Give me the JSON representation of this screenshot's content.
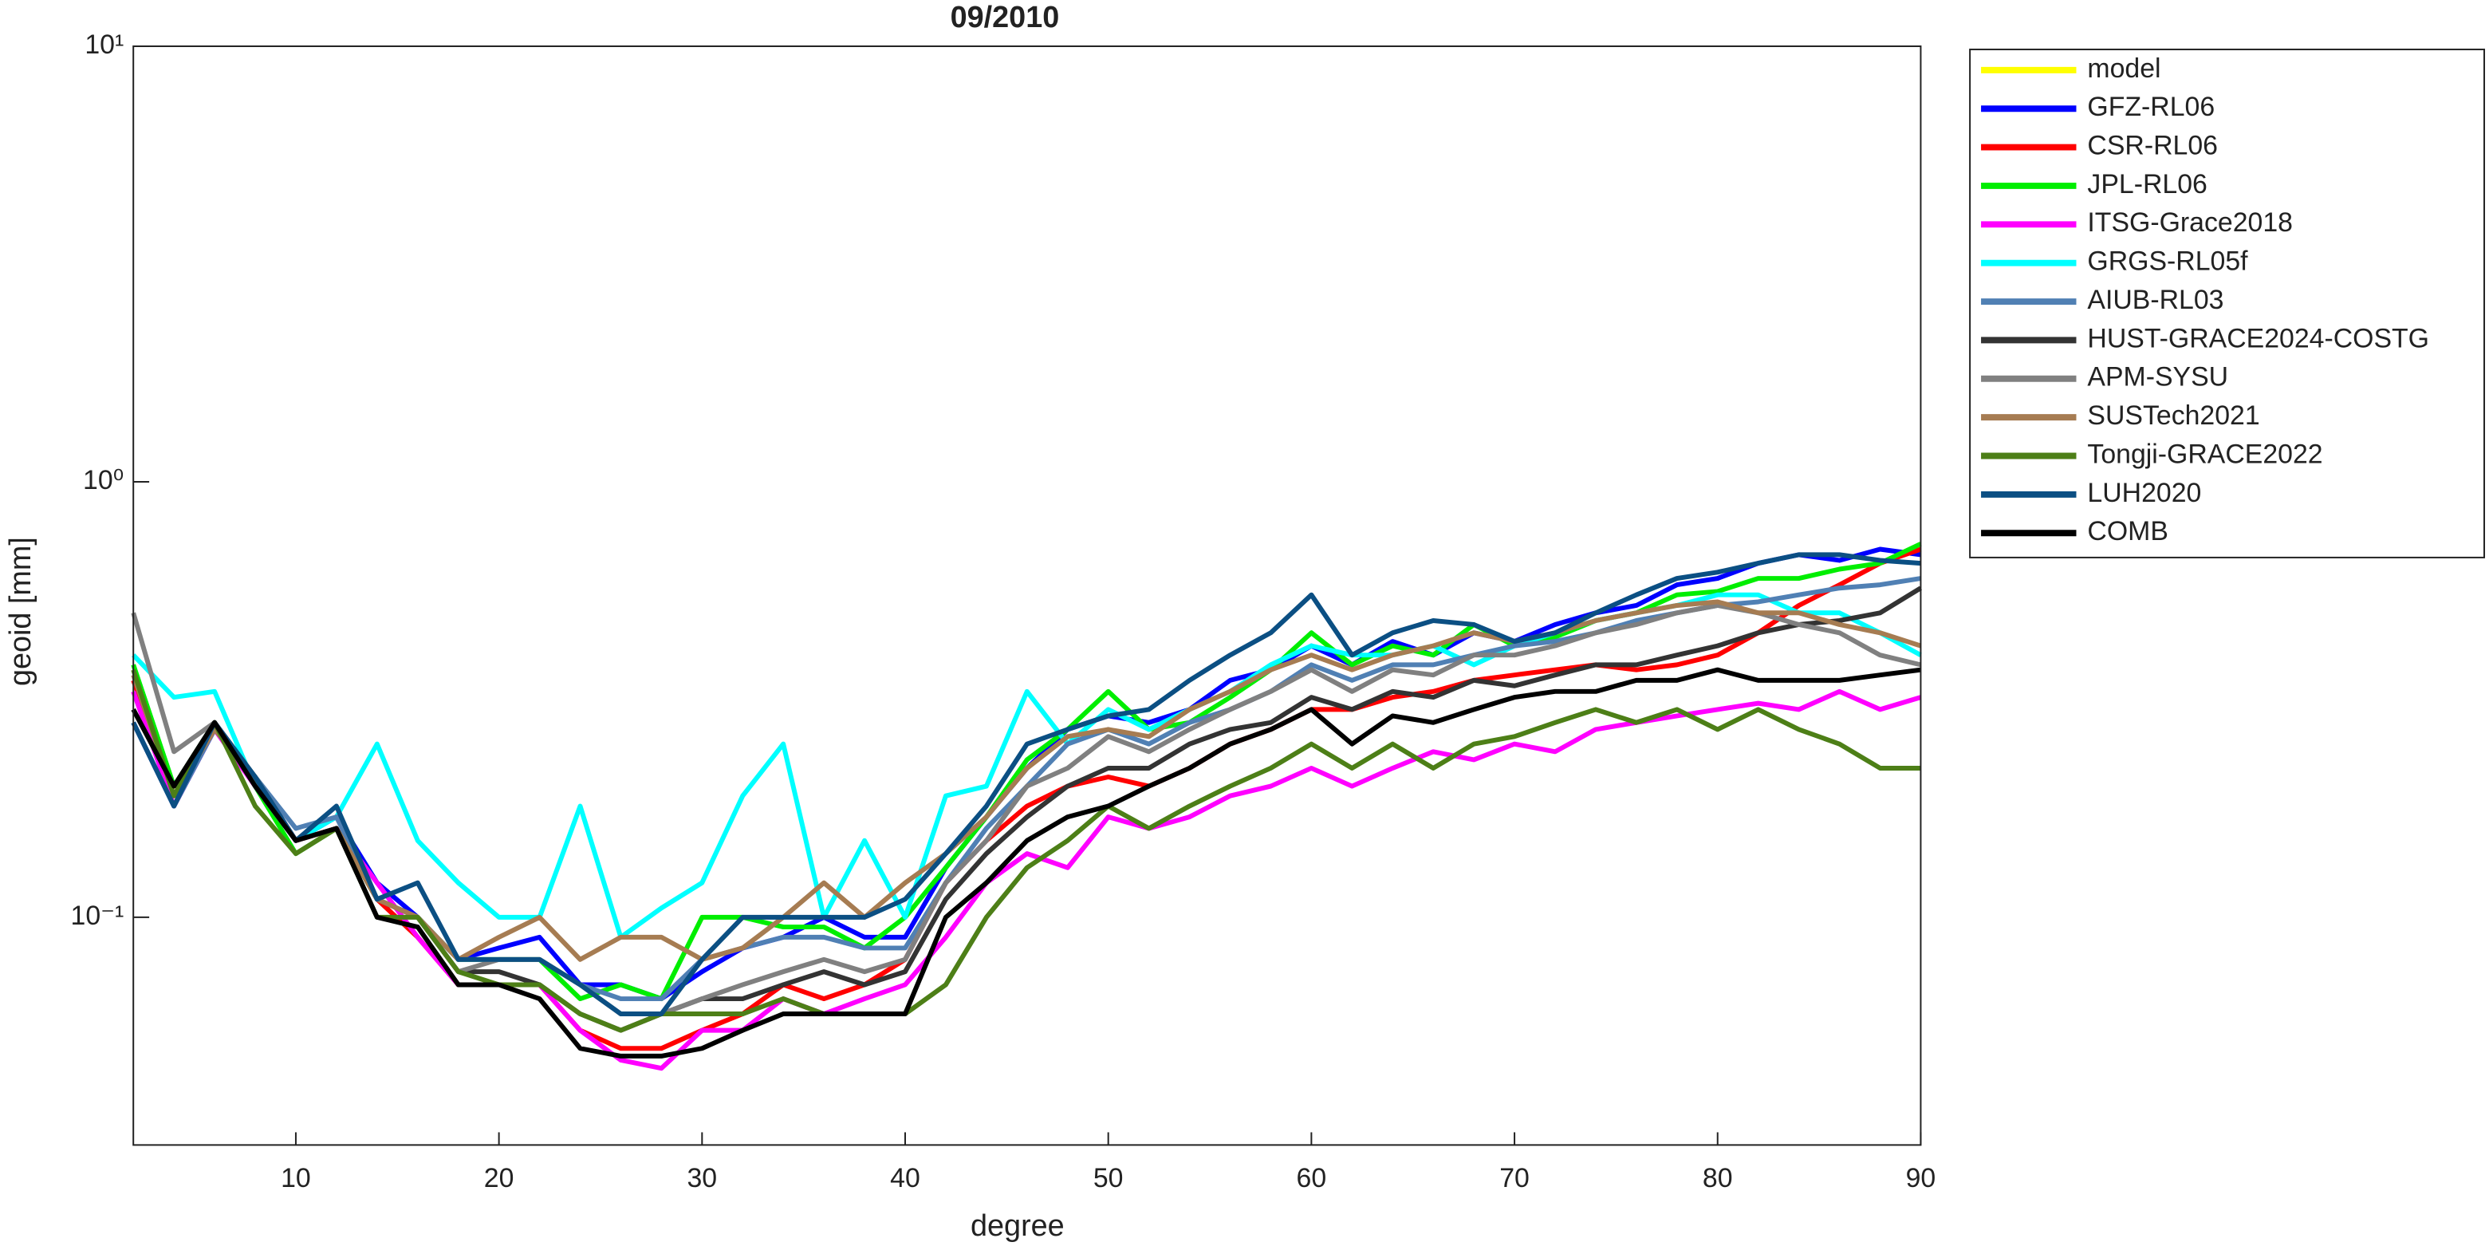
{
  "chart_data": {
    "type": "line",
    "title": "09/2010",
    "xlabel": "degree",
    "ylabel": "geoid [mm]",
    "x": [
      2,
      4,
      6,
      8,
      10,
      12,
      14,
      16,
      18,
      20,
      22,
      24,
      26,
      28,
      30,
      32,
      34,
      36,
      38,
      40,
      42,
      44,
      46,
      48,
      50,
      52,
      54,
      56,
      58,
      60,
      62,
      64,
      66,
      68,
      70,
      72,
      74,
      76,
      78,
      80,
      82,
      84,
      86,
      88,
      90
    ],
    "xlim": [
      2,
      90
    ],
    "xticks": [
      10,
      20,
      30,
      40,
      50,
      60,
      70,
      80,
      90
    ],
    "ylim": [
      0.03,
      10
    ],
    "log_y": true,
    "yticks": [
      {
        "value": 0.1,
        "label": "10⁻¹"
      },
      {
        "value": 1,
        "label": "10⁰"
      },
      {
        "value": 10,
        "label": "10¹"
      }
    ],
    "legend": "outside-right",
    "series": [
      {
        "name": "model",
        "color": "#ffff00",
        "values": [
          null,
          null,
          null,
          null,
          null,
          null,
          null,
          null,
          null,
          null,
          null,
          null,
          null,
          null,
          null,
          null,
          null,
          null,
          null,
          null,
          null,
          null,
          null,
          null,
          null,
          null,
          null,
          null,
          null,
          null,
          null,
          null,
          null,
          null,
          null,
          null,
          null,
          null,
          null,
          null,
          null,
          null,
          null,
          null,
          null
        ]
      },
      {
        "name": "GFZ-RL06",
        "color": "#0000ff",
        "values": [
          0.28,
          0.18,
          0.27,
          0.21,
          0.15,
          0.17,
          0.12,
          0.1,
          0.08,
          0.085,
          0.09,
          0.07,
          0.07,
          0.065,
          0.075,
          0.085,
          0.09,
          0.1,
          0.09,
          0.09,
          0.13,
          0.17,
          0.22,
          0.27,
          0.29,
          0.28,
          0.3,
          0.35,
          0.37,
          0.42,
          0.38,
          0.43,
          0.4,
          0.45,
          0.43,
          0.47,
          0.5,
          0.52,
          0.58,
          0.6,
          0.65,
          0.68,
          0.66,
          0.7,
          0.68
        ]
      },
      {
        "name": "CSR-RL06",
        "color": "#ff0000",
        "values": [
          0.35,
          0.19,
          0.28,
          0.2,
          0.15,
          0.16,
          0.11,
          0.09,
          0.07,
          0.07,
          0.07,
          0.055,
          0.05,
          0.05,
          0.055,
          0.06,
          0.07,
          0.065,
          0.07,
          0.08,
          0.12,
          0.15,
          0.18,
          0.2,
          0.21,
          0.2,
          0.22,
          0.25,
          0.27,
          0.3,
          0.3,
          0.32,
          0.33,
          0.35,
          0.36,
          0.37,
          0.38,
          0.37,
          0.38,
          0.4,
          0.45,
          0.52,
          0.58,
          0.65,
          0.7
        ]
      },
      {
        "name": "JPL-RL06",
        "color": "#00ee00",
        "values": [
          0.38,
          0.2,
          0.28,
          0.2,
          0.14,
          0.16,
          0.11,
          0.1,
          0.08,
          0.08,
          0.08,
          0.065,
          0.07,
          0.065,
          0.1,
          0.1,
          0.095,
          0.095,
          0.085,
          0.1,
          0.13,
          0.17,
          0.23,
          0.27,
          0.33,
          0.27,
          0.28,
          0.32,
          0.37,
          0.45,
          0.38,
          0.42,
          0.4,
          0.47,
          0.42,
          0.44,
          0.48,
          0.5,
          0.55,
          0.56,
          0.6,
          0.6,
          0.63,
          0.65,
          0.72
        ]
      },
      {
        "name": "ITSG-Grace2018",
        "color": "#ff00ff",
        "values": [
          0.33,
          0.18,
          0.27,
          0.2,
          0.15,
          0.16,
          0.12,
          0.09,
          0.07,
          0.07,
          0.07,
          0.055,
          0.047,
          0.045,
          0.055,
          0.055,
          0.065,
          0.06,
          0.065,
          0.07,
          0.09,
          0.12,
          0.14,
          0.13,
          0.17,
          0.16,
          0.17,
          0.19,
          0.2,
          0.22,
          0.2,
          0.22,
          0.24,
          0.23,
          0.25,
          0.24,
          0.27,
          0.28,
          0.29,
          0.3,
          0.31,
          0.3,
          0.33,
          0.3,
          0.32
        ]
      },
      {
        "name": "GRGS-RL05f",
        "color": "#00ffff",
        "values": [
          0.4,
          0.32,
          0.33,
          0.2,
          0.15,
          0.17,
          0.25,
          0.15,
          0.12,
          0.1,
          0.1,
          0.18,
          0.09,
          0.105,
          0.12,
          0.19,
          0.25,
          0.1,
          0.15,
          0.1,
          0.19,
          0.2,
          0.33,
          0.25,
          0.3,
          0.27,
          0.3,
          0.33,
          0.38,
          0.42,
          0.4,
          0.4,
          0.42,
          0.38,
          0.42,
          0.45,
          0.48,
          0.5,
          0.52,
          0.55,
          0.55,
          0.5,
          0.5,
          0.45,
          0.4
        ]
      },
      {
        "name": "AIUB-RL03",
        "color": "#5080b4",
        "values": [
          0.28,
          0.18,
          0.27,
          0.21,
          0.16,
          0.17,
          0.11,
          0.1,
          0.08,
          0.08,
          0.08,
          0.07,
          0.065,
          0.065,
          0.08,
          0.085,
          0.09,
          0.09,
          0.085,
          0.085,
          0.12,
          0.16,
          0.2,
          0.25,
          0.27,
          0.25,
          0.28,
          0.3,
          0.33,
          0.38,
          0.35,
          0.38,
          0.38,
          0.4,
          0.42,
          0.43,
          0.45,
          0.48,
          0.5,
          0.52,
          0.53,
          0.55,
          0.57,
          0.58,
          0.6
        ]
      },
      {
        "name": "HUST-GRACE2024-COSTG",
        "color": "#333333",
        "values": [
          0.3,
          0.2,
          0.28,
          0.21,
          0.15,
          0.16,
          0.11,
          0.1,
          0.075,
          0.075,
          0.07,
          0.06,
          0.055,
          0.06,
          0.065,
          0.065,
          0.07,
          0.075,
          0.07,
          0.075,
          0.11,
          0.14,
          0.17,
          0.2,
          0.22,
          0.22,
          0.25,
          0.27,
          0.28,
          0.32,
          0.3,
          0.33,
          0.32,
          0.35,
          0.34,
          0.36,
          0.38,
          0.38,
          0.4,
          0.42,
          0.45,
          0.47,
          0.48,
          0.5,
          0.57
        ]
      },
      {
        "name": "APM-SYSU",
        "color": "#808080",
        "values": [
          0.5,
          0.24,
          0.28,
          0.2,
          0.15,
          0.16,
          0.11,
          0.1,
          0.075,
          0.08,
          0.08,
          0.07,
          0.06,
          0.06,
          0.065,
          0.07,
          0.075,
          0.08,
          0.075,
          0.08,
          0.12,
          0.15,
          0.2,
          0.22,
          0.26,
          0.24,
          0.27,
          0.3,
          0.33,
          0.37,
          0.33,
          0.37,
          0.36,
          0.4,
          0.4,
          0.42,
          0.45,
          0.47,
          0.5,
          0.52,
          0.5,
          0.47,
          0.45,
          0.4,
          0.38
        ]
      },
      {
        "name": "SUSTech2021",
        "color": "#a67c52",
        "values": [
          0.36,
          0.19,
          0.27,
          0.21,
          0.15,
          0.16,
          0.11,
          0.1,
          0.08,
          0.09,
          0.1,
          0.08,
          0.09,
          0.09,
          0.08,
          0.085,
          0.1,
          0.12,
          0.1,
          0.12,
          0.14,
          0.17,
          0.22,
          0.26,
          0.27,
          0.26,
          0.3,
          0.33,
          0.37,
          0.4,
          0.37,
          0.4,
          0.42,
          0.45,
          0.43,
          0.45,
          0.48,
          0.5,
          0.52,
          0.53,
          0.5,
          0.5,
          0.47,
          0.45,
          0.42
        ]
      },
      {
        "name": "Tongji-GRACE2022",
        "color": "#4d7f17",
        "values": [
          0.37,
          0.19,
          0.28,
          0.18,
          0.14,
          0.16,
          0.1,
          0.1,
          0.075,
          0.07,
          0.07,
          0.06,
          0.055,
          0.06,
          0.06,
          0.06,
          0.065,
          0.06,
          0.06,
          0.06,
          0.07,
          0.1,
          0.13,
          0.15,
          0.18,
          0.16,
          0.18,
          0.2,
          0.22,
          0.25,
          0.22,
          0.25,
          0.22,
          0.25,
          0.26,
          0.28,
          0.3,
          0.28,
          0.3,
          0.27,
          0.3,
          0.27,
          0.25,
          0.22,
          0.22
        ]
      },
      {
        "name": "LUH2020",
        "color": "#0b4f83",
        "values": [
          0.28,
          0.18,
          0.28,
          0.21,
          0.15,
          0.18,
          0.11,
          0.12,
          0.08,
          0.08,
          0.08,
          0.07,
          0.06,
          0.06,
          0.08,
          0.1,
          0.1,
          0.1,
          0.1,
          0.11,
          0.14,
          0.18,
          0.25,
          0.27,
          0.29,
          0.3,
          0.35,
          0.4,
          0.45,
          0.55,
          0.4,
          0.45,
          0.48,
          0.47,
          0.43,
          0.45,
          0.5,
          0.55,
          0.6,
          0.62,
          0.65,
          0.68,
          0.68,
          0.66,
          0.65
        ]
      },
      {
        "name": "COMB",
        "color": "#000000",
        "values": [
          0.3,
          0.2,
          0.28,
          0.2,
          0.15,
          0.16,
          0.1,
          0.095,
          0.07,
          0.07,
          0.065,
          0.05,
          0.048,
          0.048,
          0.05,
          0.055,
          0.06,
          0.06,
          0.06,
          0.06,
          0.1,
          0.12,
          0.15,
          0.17,
          0.18,
          0.2,
          0.22,
          0.25,
          0.27,
          0.3,
          0.25,
          0.29,
          0.28,
          0.3,
          0.32,
          0.33,
          0.33,
          0.35,
          0.35,
          0.37,
          0.35,
          0.35,
          0.35,
          0.36,
          0.37
        ]
      }
    ]
  }
}
